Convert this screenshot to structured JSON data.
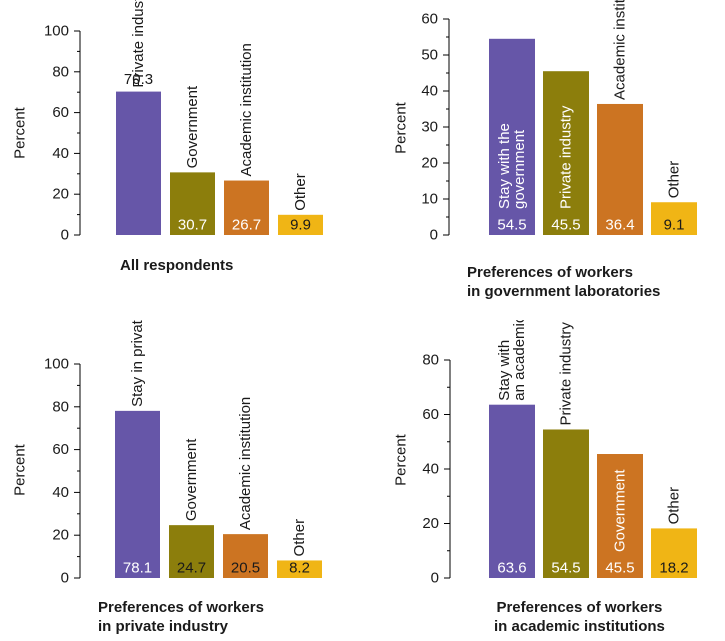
{
  "colors": {
    "private": "#6656a8",
    "government": "#8c7e0c",
    "academic": "#cc7422",
    "other": "#f0b515",
    "axis": "#000000",
    "text": "#1a1a1a",
    "label_light": "#ffffff",
    "label_dark": "#1a1a1a"
  },
  "chart_data": [
    {
      "type": "bar",
      "title": "All respondents",
      "ylabel": "Percent",
      "ylim": [
        0,
        100
      ],
      "yticks": [
        "0",
        "20",
        "40",
        "60",
        "80",
        "100"
      ],
      "categories": [
        "Private industry",
        "Government",
        "Academic institution",
        "Other"
      ],
      "values": [
        70.3,
        30.7,
        26.7,
        9.9
      ],
      "value_labels": [
        "70.3",
        "30.7",
        "26.7",
        "9.9"
      ],
      "colors": [
        "#6656a8",
        "#8c7e0c",
        "#cc7422",
        "#f0b515"
      ]
    },
    {
      "type": "bar",
      "title": "Preferences of workers in government laboratories",
      "title_lines": [
        "Preferences of workers",
        "in government laboratories"
      ],
      "ylabel": "Percent",
      "ylim": [
        0,
        60
      ],
      "yticks": [
        "0",
        "10",
        "20",
        "30",
        "40",
        "50",
        "60"
      ],
      "categories": [
        "Stay with the government",
        "Private industry",
        "Academic institution",
        "Other"
      ],
      "category_lines": [
        [
          "Stay with the",
          "government"
        ],
        [
          "Private industry"
        ],
        [
          "Academic institution"
        ],
        [
          "Other"
        ]
      ],
      "values": [
        54.5,
        45.5,
        36.4,
        9.1
      ],
      "value_labels": [
        "54.5",
        "45.5",
        "36.4",
        "9.1"
      ],
      "colors": [
        "#6656a8",
        "#8c7e0c",
        "#cc7422",
        "#f0b515"
      ]
    },
    {
      "type": "bar",
      "title": "Preferences of workers in private industry",
      "title_lines": [
        "Preferences of workers",
        "in private industry"
      ],
      "ylabel": "Percent",
      "ylim": [
        0,
        100
      ],
      "yticks": [
        "0",
        "20",
        "40",
        "60",
        "80",
        "100"
      ],
      "categories": [
        "Stay in private industry",
        "Government",
        "Academic institution",
        "Other"
      ],
      "values": [
        78.1,
        24.7,
        20.5,
        8.2
      ],
      "value_labels": [
        "78.1",
        "24.7",
        "20.5",
        "8.2"
      ],
      "colors": [
        "#6656a8",
        "#8c7e0c",
        "#cc7422",
        "#f0b515"
      ]
    },
    {
      "type": "bar",
      "title": "Preferences of workers in academic institutions",
      "title_lines": [
        "Preferences of workers",
        "in academic institutions"
      ],
      "ylabel": "Percent",
      "ylim": [
        0,
        80
      ],
      "yticks": [
        "0",
        "20",
        "40",
        "60",
        "80"
      ],
      "categories": [
        "Stay with an academic institution",
        "Private industry",
        "Government",
        "Other"
      ],
      "category_lines": [
        [
          "Stay with",
          "an academic institution"
        ],
        [
          "Private industry"
        ],
        [
          "Government"
        ],
        [
          "Other"
        ]
      ],
      "values": [
        63.6,
        54.5,
        45.5,
        18.2
      ],
      "value_labels": [
        "63.6",
        "54.5",
        "45.5",
        "18.2"
      ],
      "colors": [
        "#6656a8",
        "#8c7e0c",
        "#cc7422",
        "#f0b515"
      ]
    }
  ]
}
